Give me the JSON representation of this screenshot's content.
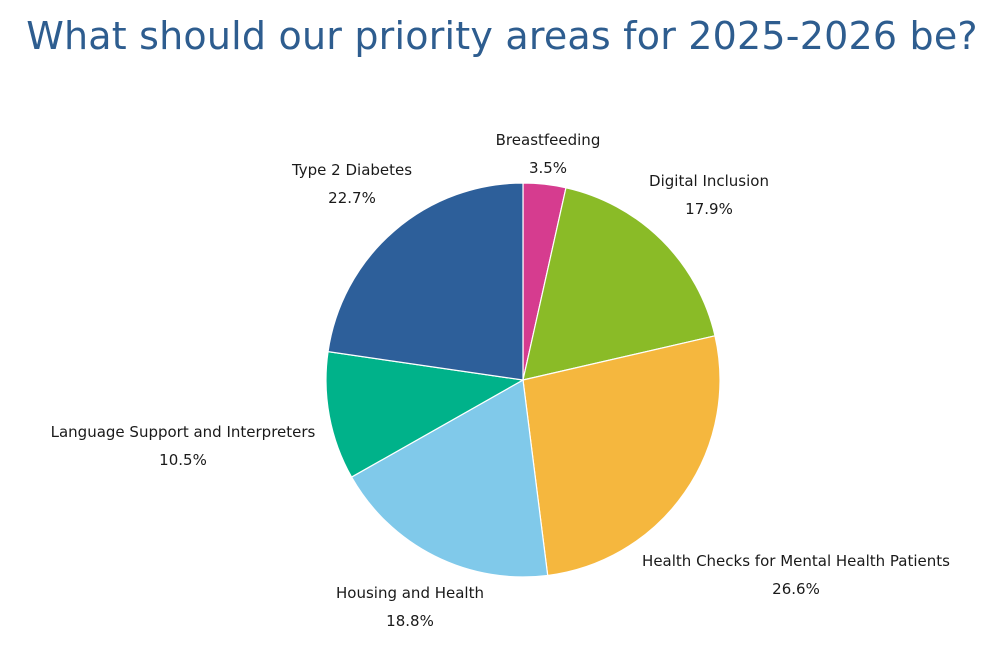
{
  "chart_data": {
    "type": "pie",
    "title": "What should our priority areas for 2025-2026 be?",
    "slices": [
      {
        "label": "Breastfeeding",
        "value": 3.5,
        "value_label": "3.5%",
        "color": "#d63c8f"
      },
      {
        "label": "Digital Inclusion",
        "value": 17.9,
        "value_label": "17.9%",
        "color": "#8abb27"
      },
      {
        "label": "Health Checks for Mental Health Patients",
        "value": 26.6,
        "value_label": "26.6%",
        "color": "#f5b73e"
      },
      {
        "label": "Housing and Health",
        "value": 18.8,
        "value_label": "18.8%",
        "color": "#80c9ea"
      },
      {
        "label": "Language Support and Interpreters",
        "value": 10.5,
        "value_label": "10.5%",
        "color": "#00b28a"
      },
      {
        "label": "Type 2 Diabetes",
        "value": 22.7,
        "value_label": "22.7%",
        "color": "#2d5f9a"
      }
    ]
  }
}
